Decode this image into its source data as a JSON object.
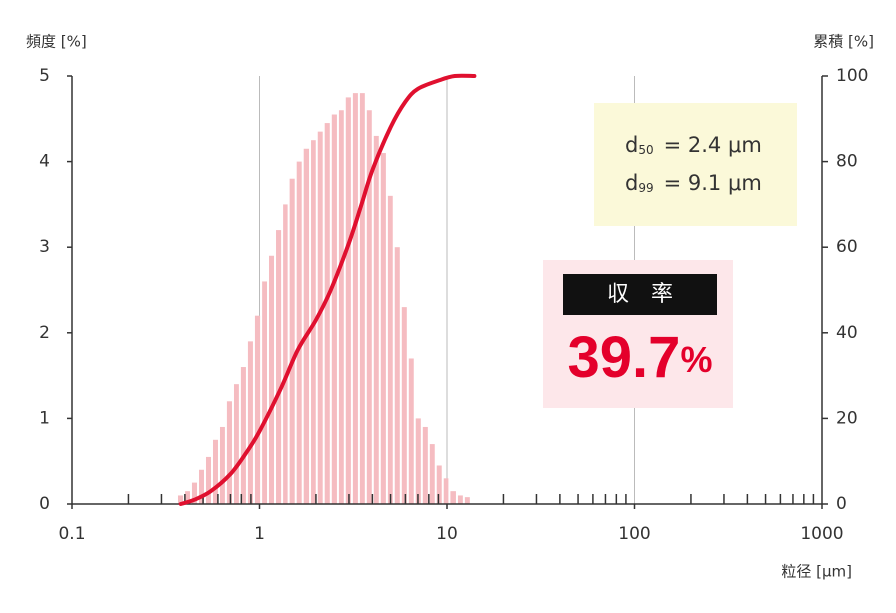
{
  "chart_data": {
    "type": "histogram",
    "y_label": "頻度 [%]",
    "y2_label": "累積 [%]",
    "x_label": "粒径 [μm]",
    "xscale": "log",
    "xlim": [
      0.1,
      1000
    ],
    "xticks": [
      0.1,
      1,
      10,
      100,
      1000
    ],
    "xminorticks": [
      0.2,
      0.3,
      0.4,
      0.5,
      0.6,
      0.7,
      0.8,
      0.9,
      2,
      3,
      4,
      5,
      6,
      7,
      8,
      9,
      20,
      30,
      40,
      50,
      60,
      70,
      80,
      90,
      200,
      300,
      400,
      500,
      600,
      700,
      800,
      900
    ],
    "xgrid": [
      1,
      10,
      100
    ],
    "ylim": [
      0,
      5
    ],
    "yticks": [
      0,
      1,
      2,
      3,
      4,
      5
    ],
    "y2lim": [
      0,
      100
    ],
    "y2ticks": [
      0,
      20,
      40,
      60,
      80,
      100
    ],
    "color": "#f5bcc1",
    "bins": [
      0.363,
      0.396,
      0.431,
      0.47,
      0.512,
      0.558,
      0.608,
      0.662,
      0.722,
      0.786,
      0.857,
      0.934,
      1.02,
      1.11,
      1.21,
      1.32,
      1.43,
      1.56,
      1.7,
      1.86,
      2.02,
      2.2,
      2.4,
      2.62,
      2.85,
      3.11,
      3.39,
      3.69,
      4.02,
      4.38,
      4.78,
      5.2,
      5.67,
      6.18,
      6.73,
      7.34,
      8.0,
      8.71,
      9.49,
      10.3,
      11.3,
      12.3,
      13.4
    ],
    "values": [
      0.1,
      0.15,
      0.25,
      0.4,
      0.55,
      0.75,
      0.9,
      1.2,
      1.4,
      1.6,
      1.9,
      2.2,
      2.6,
      2.9,
      3.2,
      3.5,
      3.8,
      4.0,
      4.15,
      4.25,
      4.35,
      4.45,
      4.55,
      4.6,
      4.75,
      4.8,
      4.8,
      4.6,
      4.3,
      4.1,
      3.6,
      3.0,
      2.3,
      1.7,
      1.0,
      0.9,
      0.7,
      0.45,
      0.3,
      0.15,
      0.1,
      0.08
    ],
    "line": {
      "type": "line",
      "axis": "y2",
      "color": "#e0102f",
      "x": [
        0.38,
        0.45,
        0.55,
        0.7,
        0.85,
        1,
        1.3,
        1.6,
        2,
        2.4,
        3,
        3.5,
        4,
        5,
        6,
        7,
        9.1,
        11,
        14
      ],
      "values": [
        0,
        1,
        3,
        7,
        12,
        17,
        27,
        36,
        43,
        50,
        61,
        70,
        78,
        88,
        94,
        97,
        99,
        100,
        100
      ]
    },
    "annotations": [
      {
        "label": "d",
        "sub": "50",
        "text": "= 2.4 μm"
      },
      {
        "label": "d",
        "sub": "99",
        "text": "= 9.1 μm"
      }
    ],
    "yield_title": "収　率",
    "yield_value": "39.7",
    "yield_unit": "%"
  }
}
